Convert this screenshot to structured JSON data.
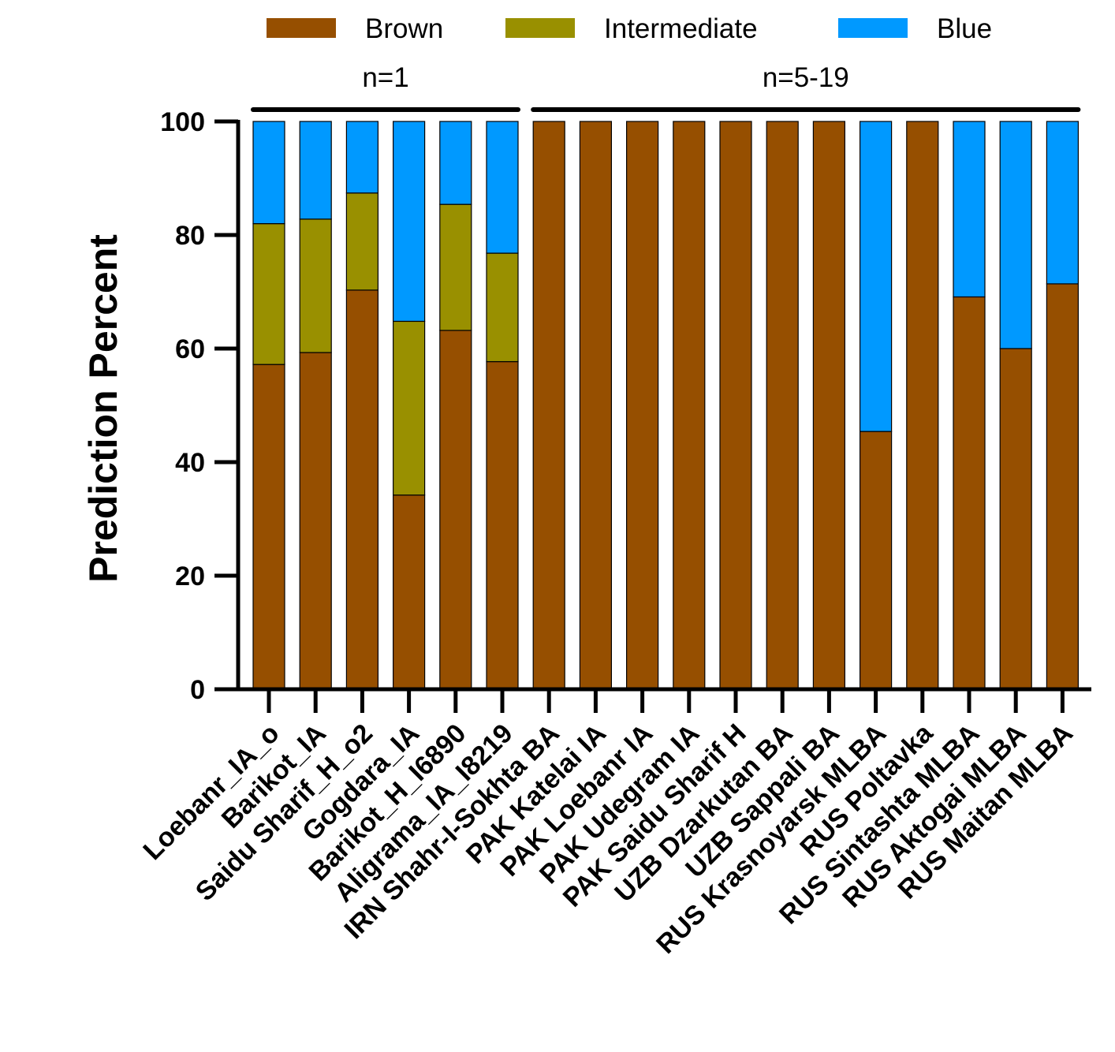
{
  "chart_data": {
    "type": "bar",
    "stacked": true,
    "title": "",
    "xlabel": "",
    "ylabel": "Prediction Percent",
    "ylim": [
      0,
      100
    ],
    "yticks": [
      0,
      20,
      40,
      60,
      80,
      100
    ],
    "legend_position": "top",
    "categories": [
      "Loebanr_IA_o",
      "Barikot_IA",
      "Saidu Sharif_H_o2",
      "Gogdara_IA",
      "Barikot_H_I6890",
      "Aligrama_IA_I8219",
      "IRN Shahr-I-Sokhta BA",
      "PAK Katelai IA",
      "PAK Loebanr IA",
      "PAK Udegram IA",
      "PAK Saidu Sharif H",
      "UZB Dzarkutan BA",
      "UZB Sappali BA",
      "RUS Krasnoyarsk MLBA",
      "RUS Poltavka",
      "RUS Sintashta MLBA",
      "RUS Aktogai MLBA",
      "RUS Maitan MLBA"
    ],
    "series": [
      {
        "name": "Brown",
        "color": "#964F00",
        "values": [
          57.2,
          59.3,
          70.3,
          34.2,
          63.2,
          57.7,
          100,
          100,
          100,
          100,
          100,
          100,
          100,
          45.4,
          100,
          69.1,
          60.0,
          71.4
        ]
      },
      {
        "name": "Intermediate",
        "color": "#999000",
        "values": [
          24.8,
          23.5,
          17.1,
          30.6,
          22.2,
          19.1,
          0,
          0,
          0,
          0,
          0,
          0,
          0,
          0,
          0,
          0,
          0,
          0
        ]
      },
      {
        "name": "Blue",
        "color": "#0099FF",
        "values": [
          18.0,
          17.2,
          12.6,
          35.2,
          14.6,
          23.2,
          0,
          0,
          0,
          0,
          0,
          0,
          0,
          54.6,
          0,
          30.9,
          40.0,
          28.6
        ]
      }
    ],
    "groups": [
      {
        "label": "n=1",
        "from": 0,
        "to": 5
      },
      {
        "label": "n=5-19",
        "from": 6,
        "to": 17
      }
    ]
  }
}
